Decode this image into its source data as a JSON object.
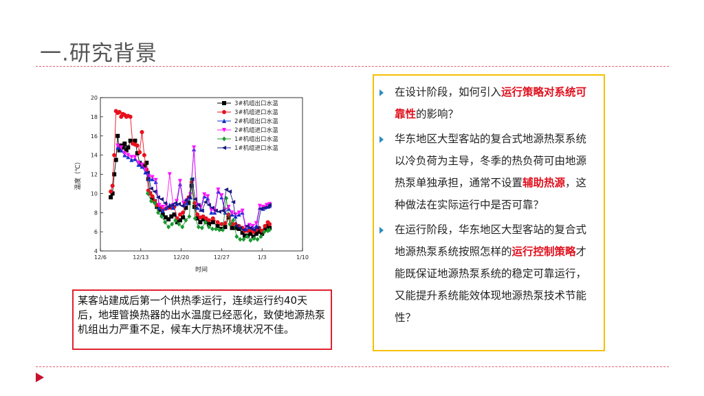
{
  "slide": {
    "title": "一.研究背景"
  },
  "caption": "某客站建成后第一个供热季运行，连续运行约40天后，地埋管换热器的出水温度已经恶化，致使地源热泵机组出力严重不足，候车大厅热环境状况不佳。",
  "questions": [
    {
      "parts": [
        {
          "text": "在设计阶段，如何引入",
          "hl": false
        },
        {
          "text": "运行策略对系统可靠性",
          "hl": true
        },
        {
          "text": "的影响？",
          "hl": false
        }
      ]
    },
    {
      "parts": [
        {
          "text": "华东地区大型客站的复合式地源热泵系统以冷负荷为主导，冬季的热负荷可由地源热泵单独承担，通常不设置",
          "hl": false
        },
        {
          "text": "辅助热源",
          "hl": true
        },
        {
          "text": "，这种做法在实际运行中是否可靠？",
          "hl": false
        }
      ]
    },
    {
      "parts": [
        {
          "text": "在运行阶段，华东地区大型客站的复合式地源热泵系统按照怎样的",
          "hl": false
        },
        {
          "text": "运行控制策略",
          "hl": true
        },
        {
          "text": "才能既保证地源热泵系统的稳定可靠运行，又能提升系统能效体现地源热泵技术节能性？",
          "hl": false
        }
      ]
    }
  ],
  "colors": {
    "accent_red": "#e0101e",
    "box_yellow": "#f5c000",
    "bullet_blue": "#2e8bc0",
    "dash": "#e06070"
  },
  "chart_data": {
    "type": "line",
    "xlabel": "时间",
    "ylabel": "温度（℃）",
    "x_ticks": [
      "12/6",
      "12/13",
      "12/20",
      "12/27",
      "1/3",
      "1/10"
    ],
    "xlim": [
      0,
      35
    ],
    "ylim": [
      4,
      20
    ],
    "y_ticks": [
      4,
      6,
      8,
      10,
      12,
      14,
      16,
      18,
      20
    ],
    "legend_position": "top-right",
    "series": [
      {
        "name": "3#机组出口水温",
        "color": "#000000",
        "marker": "square",
        "points": [
          [
            1.8,
            9.6
          ],
          [
            2.1,
            10
          ],
          [
            2.4,
            12
          ],
          [
            2.7,
            13.5
          ],
          [
            3,
            16
          ],
          [
            3.3,
            14.5
          ],
          [
            3.6,
            15
          ],
          [
            3.9,
            14.8
          ],
          [
            4.2,
            15.2
          ],
          [
            4.5,
            14.5
          ],
          [
            4.8,
            14.8
          ],
          [
            5.2,
            15.5
          ],
          [
            5.6,
            15.4
          ],
          [
            6,
            15.5
          ],
          [
            6.4,
            14.2
          ],
          [
            6.8,
            13.2
          ],
          [
            7.2,
            13
          ],
          [
            7.6,
            12.8
          ],
          [
            8,
            13.2
          ],
          [
            8.3,
            11.5
          ],
          [
            8.6,
            10
          ],
          [
            9,
            9.5
          ],
          [
            9.4,
            9.2
          ],
          [
            9.8,
            8.6
          ],
          [
            10.3,
            8.3
          ],
          [
            10.8,
            7.8
          ],
          [
            11.3,
            7.5
          ],
          [
            11.8,
            7.3
          ],
          [
            12.3,
            7.6
          ],
          [
            12.8,
            7.8
          ],
          [
            13.3,
            7
          ],
          [
            13.8,
            7.2
          ],
          [
            14.3,
            7.5
          ],
          [
            14.8,
            8.5
          ],
          [
            15.3,
            9
          ],
          [
            15.8,
            10.8
          ],
          [
            16.3,
            8.6
          ],
          [
            16.8,
            7.4
          ],
          [
            17.3,
            7
          ],
          [
            17.8,
            7.3
          ],
          [
            18.3,
            7
          ],
          [
            18.8,
            6.8
          ],
          [
            19.5,
            7
          ],
          [
            20.3,
            6.6
          ],
          [
            21,
            6.3
          ],
          [
            21.6,
            6.5
          ],
          [
            22.2,
            7.5
          ],
          [
            22.8,
            6.4
          ],
          [
            23.4,
            6.4
          ],
          [
            24,
            6.3
          ],
          [
            24.6,
            5.9
          ],
          [
            25,
            5.6
          ],
          [
            25.5,
            5.6
          ],
          [
            26,
            5.8
          ],
          [
            26.5,
            5.5
          ],
          [
            27,
            5.8
          ],
          [
            27.5,
            6
          ],
          [
            28,
            5.8
          ],
          [
            28.5,
            6.2
          ],
          [
            29,
            6.6
          ],
          [
            29.3,
            6.4
          ]
        ]
      },
      {
        "name": "3#机组进口水温",
        "color": "#e8101e",
        "marker": "circle",
        "points": [
          [
            1.8,
            10.2
          ],
          [
            2.1,
            10.8
          ],
          [
            2.4,
            14
          ],
          [
            2.7,
            18.6
          ],
          [
            3,
            18.4
          ],
          [
            3.3,
            18.5
          ],
          [
            3.6,
            18
          ],
          [
            3.9,
            18.3
          ],
          [
            4.2,
            18.2
          ],
          [
            4.5,
            18
          ],
          [
            4.8,
            18.1
          ],
          [
            5.2,
            18
          ],
          [
            5.6,
            15.2
          ],
          [
            6,
            15.1
          ],
          [
            6.4,
            15
          ],
          [
            6.8,
            14.3
          ],
          [
            7.2,
            16.4
          ],
          [
            7.6,
            14
          ],
          [
            8,
            12.5
          ],
          [
            8.3,
            10.3
          ],
          [
            8.6,
            10
          ],
          [
            9,
            9.7
          ],
          [
            9.4,
            9.2
          ],
          [
            9.8,
            8.8
          ],
          [
            10.3,
            8.5
          ],
          [
            10.8,
            8.3
          ],
          [
            11.3,
            8.4
          ],
          [
            11.8,
            8.5
          ],
          [
            12.3,
            8.5
          ],
          [
            12.8,
            8.6
          ],
          [
            13.3,
            7.4
          ],
          [
            13.8,
            7.8
          ],
          [
            14.3,
            8
          ],
          [
            14.8,
            9
          ],
          [
            15.3,
            9.6
          ],
          [
            15.8,
            11.2
          ],
          [
            16.3,
            9
          ],
          [
            16.8,
            7.8
          ],
          [
            17.3,
            7.5
          ],
          [
            17.8,
            7.6
          ],
          [
            18.3,
            7.4
          ],
          [
            18.8,
            7.2
          ],
          [
            19.5,
            7.4
          ],
          [
            20.3,
            7
          ],
          [
            21,
            6.8
          ],
          [
            21.6,
            6.9
          ],
          [
            22.2,
            7.8
          ],
          [
            22.8,
            6.8
          ],
          [
            23.4,
            6.8
          ],
          [
            24,
            6.6
          ],
          [
            24.6,
            6.4
          ],
          [
            25,
            6.1
          ],
          [
            25.5,
            6.1
          ],
          [
            26,
            6.2
          ],
          [
            26.5,
            6
          ],
          [
            27,
            6.2
          ],
          [
            27.5,
            6.4
          ],
          [
            28,
            6.1
          ],
          [
            28.5,
            6.6
          ],
          [
            29,
            7
          ],
          [
            29.3,
            6.8
          ]
        ]
      },
      {
        "name": "2#机组出口水温",
        "color": "#1030d0",
        "marker": "triangle-up",
        "points": [
          [
            3,
            14.8
          ],
          [
            3.6,
            14.5
          ],
          [
            4.2,
            14
          ],
          [
            4.8,
            13.8
          ],
          [
            5.4,
            13.5
          ],
          [
            6,
            13.6
          ],
          [
            6.6,
            13
          ],
          [
            7.2,
            12.8
          ],
          [
            7.8,
            12.2
          ],
          [
            8.4,
            11.5
          ],
          [
            9,
            11.5
          ],
          [
            9.6,
            11.2
          ],
          [
            10.2,
            8.5
          ],
          [
            10.8,
            8.2
          ],
          [
            11.4,
            8.5
          ],
          [
            12,
            8.8
          ],
          [
            12.6,
            8.5
          ],
          [
            13.2,
            8.9
          ],
          [
            13.8,
            11
          ],
          [
            14.4,
            8.8
          ],
          [
            15,
            9
          ],
          [
            15.6,
            9.6
          ],
          [
            16.2,
            14.6
          ],
          [
            16.8,
            8.5
          ],
          [
            17.4,
            8.3
          ],
          [
            18,
            9.7
          ],
          [
            18.6,
            9.5
          ],
          [
            19.2,
            8
          ],
          [
            19.8,
            8
          ],
          [
            20.4,
            10.2
          ],
          [
            21,
            9.6
          ],
          [
            21.6,
            8
          ],
          [
            22.2,
            8.4
          ],
          [
            22.8,
            7.8
          ],
          [
            23.4,
            7.6
          ],
          [
            24,
            7.8
          ],
          [
            24.6,
            8
          ],
          [
            25.2,
            6.3
          ],
          [
            25.8,
            6.5
          ],
          [
            26.4,
            6.4
          ],
          [
            27,
            6.6
          ],
          [
            27.6,
            8.5
          ],
          [
            28.2,
            8.4
          ],
          [
            28.8,
            8.6
          ],
          [
            29.3,
            8.7
          ]
        ]
      },
      {
        "name": "2#机组进口水温",
        "color": "#ff10ff",
        "marker": "triangle-down",
        "points": [
          [
            3,
            15
          ],
          [
            3.6,
            14.8
          ],
          [
            4.2,
            14.2
          ],
          [
            4.8,
            14
          ],
          [
            5.4,
            13.8
          ],
          [
            6,
            13.8
          ],
          [
            6.6,
            13.2
          ],
          [
            7.2,
            13
          ],
          [
            7.8,
            12.5
          ],
          [
            8.4,
            11.8
          ],
          [
            9,
            11.7
          ],
          [
            9.6,
            11.4
          ],
          [
            10.2,
            8.8
          ],
          [
            10.8,
            8.6
          ],
          [
            11.4,
            8.8
          ],
          [
            12,
            12
          ],
          [
            12.6,
            8.8
          ],
          [
            13.2,
            9.2
          ],
          [
            13.8,
            11.3
          ],
          [
            14.4,
            9
          ],
          [
            15,
            9.3
          ],
          [
            15.6,
            9.9
          ],
          [
            16.2,
            14.8
          ],
          [
            16.8,
            8.8
          ],
          [
            17.4,
            8.6
          ],
          [
            18,
            9.9
          ],
          [
            18.6,
            9.7
          ],
          [
            19.2,
            8.3
          ],
          [
            19.8,
            8.2
          ],
          [
            20.4,
            10.4
          ],
          [
            21,
            9.8
          ],
          [
            21.6,
            8.3
          ],
          [
            22.2,
            8.6
          ],
          [
            22.8,
            8
          ],
          [
            23.4,
            7.8
          ],
          [
            24,
            8
          ],
          [
            24.6,
            8.2
          ],
          [
            25.2,
            6.5
          ],
          [
            25.8,
            6.7
          ],
          [
            26.4,
            6.6
          ],
          [
            27,
            6.9
          ],
          [
            27.6,
            8.7
          ],
          [
            28.2,
            8.6
          ],
          [
            28.8,
            8.8
          ],
          [
            29.3,
            8.9
          ]
        ]
      },
      {
        "name": "1#机组出口水温",
        "color": "#1a9a30",
        "marker": "diamond",
        "points": [
          [
            8.2,
            10
          ],
          [
            8.8,
            9.2
          ],
          [
            9.4,
            9
          ],
          [
            10,
            8
          ],
          [
            10.6,
            7.6
          ],
          [
            11.2,
            7
          ],
          [
            11.8,
            6.5
          ],
          [
            12.4,
            6.8
          ],
          [
            13,
            7.2
          ],
          [
            13.6,
            6.8
          ],
          [
            14.2,
            6.5
          ],
          [
            14.8,
            7.2
          ],
          [
            15.4,
            7.6
          ],
          [
            15.8,
            11.5
          ],
          [
            16.4,
            7.4
          ],
          [
            17,
            6.5
          ],
          [
            17.6,
            6.4
          ],
          [
            18.2,
            7
          ],
          [
            18.8,
            6.5
          ],
          [
            19.4,
            6.3
          ],
          [
            20,
            6.3
          ],
          [
            20.6,
            6.2
          ],
          [
            21.2,
            6.2
          ],
          [
            21.8,
            9.5
          ],
          [
            22.4,
            6.8
          ],
          [
            23,
            7.2
          ],
          [
            23.6,
            5.5
          ],
          [
            24.2,
            5.2
          ],
          [
            24.8,
            5.2
          ],
          [
            25.4,
            5.5
          ],
          [
            26,
            5.1
          ],
          [
            26.6,
            5.3
          ],
          [
            27.2,
            5.2
          ],
          [
            27.8,
            5.5
          ],
          [
            28.4,
            6
          ],
          [
            29,
            6.1
          ],
          [
            29.3,
            6.2
          ]
        ]
      },
      {
        "name": "1#机组进口水温",
        "color": "#1a1a80",
        "marker": "triangle-left",
        "points": [
          [
            8.2,
            12.2
          ],
          [
            8.8,
            10.5
          ],
          [
            9.4,
            10.2
          ],
          [
            10,
            9.6
          ],
          [
            10.6,
            9.4
          ],
          [
            11.2,
            9
          ],
          [
            11.8,
            8.6
          ],
          [
            12.4,
            8.8
          ],
          [
            13,
            9
          ],
          [
            13.6,
            8.9
          ],
          [
            14.2,
            8.7
          ],
          [
            14.8,
            9.3
          ],
          [
            15.4,
            9.6
          ],
          [
            15.9,
            11.5
          ],
          [
            16.4,
            9.4
          ],
          [
            17,
            8.8
          ],
          [
            17.6,
            8.2
          ],
          [
            18.2,
            9.1
          ],
          [
            18.8,
            8.8
          ],
          [
            19.4,
            8.5
          ],
          [
            20,
            8.2
          ],
          [
            20.6,
            8.1
          ],
          [
            21.2,
            8.2
          ],
          [
            21.8,
            10.4
          ],
          [
            22.4,
            10.2
          ],
          [
            23,
            9.1
          ],
          [
            23.6,
            6.6
          ],
          [
            24.2,
            6.4
          ],
          [
            24.8,
            6.2
          ],
          [
            25.4,
            6.6
          ],
          [
            26,
            6.4
          ],
          [
            26.6,
            6.2
          ],
          [
            27.2,
            6.4
          ],
          [
            27.8,
            8.4
          ],
          [
            28.4,
            8.5
          ],
          [
            29,
            8.6
          ],
          [
            29.3,
            8.8
          ]
        ]
      }
    ]
  }
}
